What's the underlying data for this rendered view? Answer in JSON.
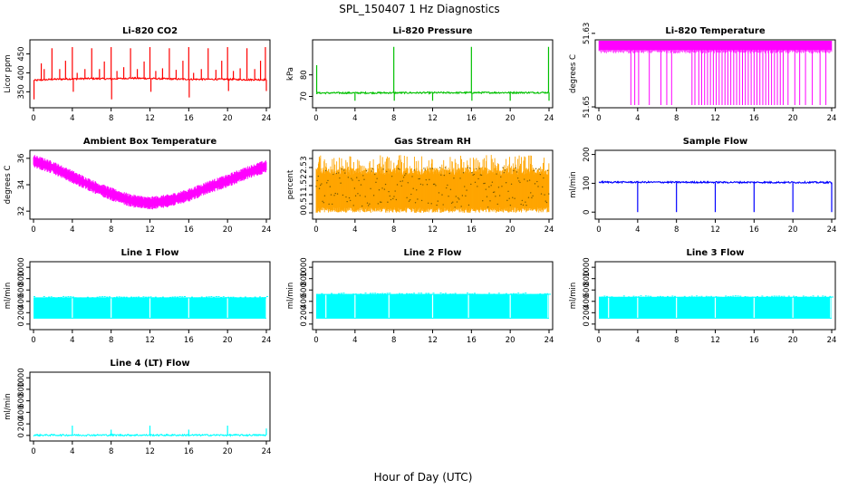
{
  "main_title": "SPL_150407  1 Hz Diagnostics",
  "xlabel": "Hour of Day (UTC)",
  "chart_data": [
    {
      "type": "line",
      "title": "Li-820 CO2",
      "xlabel": "",
      "ylabel": "Licor ppm",
      "color": "#ff0000",
      "xlim": [
        0,
        24
      ],
      "ylim": [
        315,
        480
      ],
      "x_ticks": [
        0,
        4,
        8,
        12,
        16,
        20,
        24
      ],
      "y_ticks": [
        350,
        400,
        450
      ],
      "series": [
        {
          "base_values": [
            [
              0,
              380
            ],
            [
              2,
              383
            ],
            [
              4,
              384
            ],
            [
              6,
              385
            ],
            [
              8,
              384
            ],
            [
              10,
              386
            ],
            [
              12,
              385
            ],
            [
              14,
              384
            ],
            [
              16,
              383
            ],
            [
              18,
              383
            ],
            [
              20,
              383
            ],
            [
              22,
              382
            ],
            [
              24,
              382
            ]
          ],
          "spikes": [
            {
              "x": 0.05,
              "y": 330
            },
            {
              "x": 0.8,
              "y": 425
            },
            {
              "x": 1.1,
              "y": 410
            },
            {
              "x": 1.9,
              "y": 465
            },
            {
              "x": 2.7,
              "y": 410
            },
            {
              "x": 3.3,
              "y": 432
            },
            {
              "x": 4.0,
              "y": 468
            },
            {
              "x": 4.1,
              "y": 350
            },
            {
              "x": 4.5,
              "y": 400
            },
            {
              "x": 5.3,
              "y": 410
            },
            {
              "x": 6.0,
              "y": 465
            },
            {
              "x": 6.8,
              "y": 410
            },
            {
              "x": 7.3,
              "y": 430
            },
            {
              "x": 8.0,
              "y": 468
            },
            {
              "x": 8.05,
              "y": 330
            },
            {
              "x": 8.6,
              "y": 405
            },
            {
              "x": 9.3,
              "y": 415
            },
            {
              "x": 10.0,
              "y": 465
            },
            {
              "x": 10.7,
              "y": 410
            },
            {
              "x": 11.4,
              "y": 430
            },
            {
              "x": 12.0,
              "y": 468
            },
            {
              "x": 12.1,
              "y": 350
            },
            {
              "x": 12.6,
              "y": 405
            },
            {
              "x": 13.3,
              "y": 412
            },
            {
              "x": 14.0,
              "y": 465
            },
            {
              "x": 14.7,
              "y": 408
            },
            {
              "x": 15.4,
              "y": 432
            },
            {
              "x": 16.0,
              "y": 468
            },
            {
              "x": 16.05,
              "y": 335
            },
            {
              "x": 16.5,
              "y": 400
            },
            {
              "x": 17.3,
              "y": 410
            },
            {
              "x": 18.0,
              "y": 465
            },
            {
              "x": 18.8,
              "y": 408
            },
            {
              "x": 19.4,
              "y": 432
            },
            {
              "x": 20.0,
              "y": 468
            },
            {
              "x": 20.1,
              "y": 352
            },
            {
              "x": 20.6,
              "y": 405
            },
            {
              "x": 21.3,
              "y": 412
            },
            {
              "x": 22.0,
              "y": 465
            },
            {
              "x": 22.8,
              "y": 410
            },
            {
              "x": 23.4,
              "y": 432
            },
            {
              "x": 23.9,
              "y": 468
            },
            {
              "x": 24.0,
              "y": 352
            }
          ]
        }
      ]
    },
    {
      "type": "line",
      "title": "Li-820 Pressure",
      "xlabel": "",
      "ylabel": "kPa",
      "color": "#00c000",
      "xlim": [
        0,
        24
      ],
      "ylim": [
        66,
        95
      ],
      "x_ticks": [
        0,
        4,
        8,
        12,
        16,
        20,
        24
      ],
      "y_ticks": [
        70,
        80
      ],
      "series": [
        {
          "base_values": [
            [
              0,
              71.6
            ],
            [
              24,
              71.8
            ]
          ],
          "spikes": [
            {
              "x": 0.05,
              "y": 84.5
            },
            {
              "x": 4.0,
              "y": 68
            },
            {
              "x": 8.0,
              "y": 93
            },
            {
              "x": 8.05,
              "y": 68
            },
            {
              "x": 12.0,
              "y": 68
            },
            {
              "x": 16.0,
              "y": 93
            },
            {
              "x": 16.05,
              "y": 68
            },
            {
              "x": 20.0,
              "y": 68
            },
            {
              "x": 23.95,
              "y": 93
            },
            {
              "x": 24.0,
              "y": 68
            }
          ]
        }
      ]
    },
    {
      "type": "line",
      "title": "Li-820 Temperature",
      "xlabel": "",
      "ylabel": "degrees C",
      "color": "#ff00ff",
      "xlim": [
        0,
        24
      ],
      "ylim": [
        51.6495,
        51.6325
      ],
      "x_ticks": [
        0,
        4,
        8,
        12,
        16,
        20,
        24
      ],
      "y_ticks": [
        51.63,
        51.65
      ],
      "series": [
        {
          "band": [
            51.6315,
            51.6345
          ],
          "drops_to": 51.6495,
          "drop_x": [
            3.3,
            3.7,
            4.1,
            5.2,
            6.4,
            7.0,
            7.5,
            9.6,
            9.9,
            10.3,
            10.6,
            10.9,
            11.2,
            11.5,
            11.8,
            12.1,
            12.4,
            12.7,
            13.0,
            13.3,
            13.6,
            13.9,
            14.2,
            14.5,
            14.8,
            15.1,
            15.4,
            15.7,
            16.0,
            16.3,
            16.6,
            16.9,
            17.2,
            17.5,
            17.8,
            18.1,
            18.4,
            18.7,
            19.0,
            19.5,
            20.2,
            20.7,
            21.3,
            22.0,
            22.8,
            23.4
          ]
        }
      ]
    },
    {
      "type": "line",
      "title": "Ambient Box Temperature",
      "xlabel": "",
      "ylabel": "degrees C",
      "color": "#ff00ff",
      "xlim": [
        0,
        24
      ],
      "ylim": [
        31.6,
        36.4
      ],
      "x_ticks": [
        0,
        4,
        8,
        12,
        16,
        20,
        24
      ],
      "y_ticks": [
        32,
        34,
        36
      ],
      "series": [
        {
          "values": [
            [
              0,
              35.8
            ],
            [
              2,
              35.3
            ],
            [
              4,
              34.6
            ],
            [
              6,
              33.9
            ],
            [
              8,
              33.3
            ],
            [
              10,
              32.8
            ],
            [
              12,
              32.6
            ],
            [
              14,
              32.8
            ],
            [
              16,
              33.2
            ],
            [
              18,
              33.8
            ],
            [
              20,
              34.3
            ],
            [
              22,
              34.9
            ],
            [
              24,
              35.4
            ]
          ],
          "spread": 0.9
        }
      ]
    },
    {
      "type": "line",
      "title": "Gas Stream RH",
      "xlabel": "",
      "ylabel": "percent",
      "color": "#ffa500",
      "xlim": [
        0,
        24
      ],
      "ylim": [
        -0.2,
        3.3
      ],
      "x_ticks": [
        0,
        4,
        8,
        12,
        16,
        20,
        24
      ],
      "y_ticks": [
        0.0,
        0.5,
        1.0,
        1.5,
        2.0,
        2.5,
        3.0
      ],
      "series": [
        {
          "band": [
            0.3,
            2.5
          ],
          "spread_max": [
            0.0,
            3.2
          ]
        }
      ]
    },
    {
      "type": "line",
      "title": "Sample Flow",
      "xlabel": "",
      "ylabel": "ml/min",
      "color": "#0000ff",
      "xlim": [
        0,
        24
      ],
      "ylim": [
        -15,
        205
      ],
      "x_ticks": [
        0,
        4,
        8,
        12,
        16,
        20,
        24
      ],
      "y_ticks": [
        0,
        100,
        200
      ],
      "series": [
        {
          "base_values": [
            [
              0,
              104
            ],
            [
              24,
              103
            ]
          ],
          "spikes": [
            {
              "x": 4.0,
              "y": 0
            },
            {
              "x": 8.0,
              "y": 0
            },
            {
              "x": 12.0,
              "y": 0
            },
            {
              "x": 16.0,
              "y": 0
            },
            {
              "x": 20.0,
              "y": 0
            },
            {
              "x": 24.0,
              "y": 0
            }
          ]
        }
      ]
    },
    {
      "type": "line",
      "title": "Line 1 Flow",
      "xlabel": "",
      "ylabel": "ml/min",
      "color": "#00ffff",
      "xlim": [
        0,
        24
      ],
      "ylim": [
        -50,
        1050
      ],
      "x_ticks": [
        0,
        4,
        8,
        12,
        16,
        20,
        24
      ],
      "y_ticks": [
        0,
        200,
        400,
        600,
        800,
        1000
      ],
      "series": [
        {
          "band": [
            95,
            470
          ],
          "gap_x": [
            4.0,
            8.0,
            12.0,
            16.0,
            20.0,
            24.0
          ]
        }
      ]
    },
    {
      "type": "line",
      "title": "Line 2 Flow",
      "xlabel": "",
      "ylabel": "ml/min",
      "color": "#00ffff",
      "xlim": [
        0,
        24
      ],
      "ylim": [
        -50,
        1050
      ],
      "x_ticks": [
        0,
        4,
        8,
        12,
        16,
        20,
        24
      ],
      "y_ticks": [
        0,
        200,
        400,
        600,
        800,
        1000
      ],
      "series": [
        {
          "band": [
            95,
            530
          ],
          "gap_x": [
            1.0,
            4.0,
            7.5,
            12.0,
            15.7,
            20.0,
            23.9
          ]
        }
      ]
    },
    {
      "type": "line",
      "title": "Line 3 Flow",
      "xlabel": "",
      "ylabel": "ml/min",
      "color": "#00ffff",
      "xlim": [
        0,
        24
      ],
      "ylim": [
        -50,
        1050
      ],
      "x_ticks": [
        0,
        4,
        8,
        12,
        16,
        20,
        24
      ],
      "y_ticks": [
        0,
        200,
        400,
        600,
        800,
        1000
      ],
      "series": [
        {
          "band": [
            95,
            480
          ],
          "gap_x": [
            1.0,
            4.0,
            8.0,
            12.0,
            16.0,
            20.0,
            23.9
          ]
        }
      ]
    },
    {
      "type": "line",
      "title": "Line 4 (LT) Flow",
      "xlabel": "",
      "ylabel": "ml/min",
      "color": "#00ffff",
      "xlim": [
        0,
        24
      ],
      "ylim": [
        -50,
        1050
      ],
      "x_ticks": [
        0,
        4,
        8,
        12,
        16,
        20,
        24
      ],
      "y_ticks": [
        0,
        200,
        400,
        600,
        800,
        1000
      ],
      "series": [
        {
          "base_values": [
            [
              0,
              5
            ],
            [
              24,
              5
            ]
          ],
          "spikes": [
            {
              "x": 4.0,
              "y": 170
            },
            {
              "x": 8.0,
              "y": 100
            },
            {
              "x": 12.0,
              "y": 170
            },
            {
              "x": 16.0,
              "y": 100
            },
            {
              "x": 20.0,
              "y": 170
            },
            {
              "x": 24.0,
              "y": 120
            }
          ]
        }
      ]
    }
  ]
}
